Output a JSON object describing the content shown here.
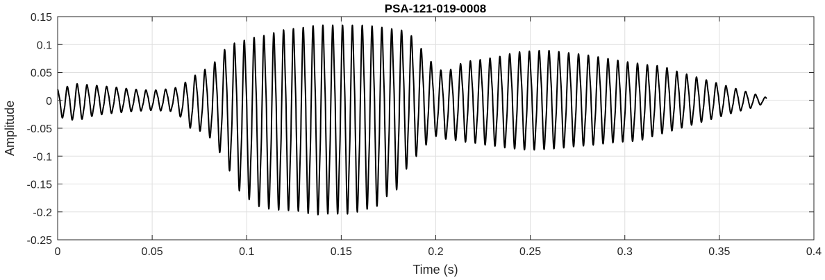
{
  "chart_data": {
    "type": "line",
    "title": "PSA-121-019-0008",
    "xlabel": "Time (s)",
    "ylabel": "Amplitude",
    "xlim": [
      0,
      0.4
    ],
    "ylim": [
      -0.25,
      0.15
    ],
    "xticks": [
      0,
      0.05,
      0.1,
      0.15,
      0.2,
      0.25,
      0.3,
      0.35,
      0.4
    ],
    "xtick_labels": [
      "0",
      "0.05",
      "0.1",
      "0.15",
      "0.2",
      "0.25",
      "0.3",
      "0.35",
      "0.4"
    ],
    "yticks": [
      -0.25,
      -0.2,
      -0.15,
      -0.1,
      -0.05,
      0,
      0.05,
      0.1,
      0.15
    ],
    "ytick_labels": [
      "-0.25",
      "-0.2",
      "-0.15",
      "-0.1",
      "-0.05",
      "0",
      "0.05",
      "0.1",
      "0.15"
    ],
    "grid": true,
    "legend": "none",
    "series": [
      {
        "line_color": "#000000",
        "envelope_top": {
          "x": [
            0,
            0.01,
            0.02,
            0.03,
            0.04,
            0.05,
            0.06,
            0.065,
            0.07,
            0.075,
            0.08,
            0.085,
            0.09,
            0.095,
            0.1,
            0.105,
            0.11,
            0.115,
            0.12,
            0.125,
            0.13,
            0.135,
            0.14,
            0.145,
            0.15,
            0.155,
            0.16,
            0.165,
            0.17,
            0.175,
            0.18,
            0.185,
            0.19,
            0.195,
            0.2,
            0.205,
            0.21,
            0.215,
            0.22,
            0.225,
            0.23,
            0.235,
            0.24,
            0.245,
            0.25,
            0.255,
            0.26,
            0.265,
            0.27,
            0.275,
            0.28,
            0.285,
            0.29,
            0.295,
            0.3,
            0.305,
            0.31,
            0.315,
            0.32,
            0.325,
            0.33,
            0.335,
            0.34,
            0.345,
            0.35,
            0.355,
            0.36,
            0.365,
            0.37,
            0.375
          ],
          "y": [
            0.02,
            0.03,
            0.027,
            0.024,
            0.02,
            0.018,
            0.021,
            0.025,
            0.04,
            0.05,
            0.06,
            0.075,
            0.1,
            0.105,
            0.11,
            0.115,
            0.118,
            0.123,
            0.128,
            0.13,
            0.132,
            0.135,
            0.136,
            0.136,
            0.136,
            0.136,
            0.136,
            0.135,
            0.133,
            0.13,
            0.128,
            0.125,
            0.105,
            0.08,
            0.06,
            0.05,
            0.06,
            0.07,
            0.072,
            0.074,
            0.077,
            0.08,
            0.085,
            0.088,
            0.089,
            0.09,
            0.09,
            0.088,
            0.086,
            0.084,
            0.082,
            0.079,
            0.076,
            0.073,
            0.07,
            0.068,
            0.065,
            0.063,
            0.062,
            0.055,
            0.05,
            0.045,
            0.04,
            0.035,
            0.03,
            0.025,
            0.02,
            0.015,
            0.01,
            0.005
          ]
        },
        "envelope_bottom": {
          "x": [
            0,
            0.01,
            0.02,
            0.03,
            0.04,
            0.05,
            0.06,
            0.065,
            0.07,
            0.075,
            0.08,
            0.085,
            0.09,
            0.095,
            0.1,
            0.105,
            0.11,
            0.115,
            0.12,
            0.125,
            0.13,
            0.135,
            0.14,
            0.145,
            0.15,
            0.155,
            0.16,
            0.165,
            0.17,
            0.175,
            0.18,
            0.185,
            0.19,
            0.195,
            0.2,
            0.205,
            0.21,
            0.215,
            0.22,
            0.225,
            0.23,
            0.235,
            0.24,
            0.245,
            0.25,
            0.255,
            0.26,
            0.265,
            0.27,
            0.275,
            0.28,
            0.285,
            0.29,
            0.295,
            0.3,
            0.305,
            0.31,
            0.315,
            0.32,
            0.325,
            0.33,
            0.335,
            0.34,
            0.345,
            0.35,
            0.355,
            0.36,
            0.365,
            0.37,
            0.375
          ],
          "y": [
            -0.03,
            -0.037,
            -0.027,
            -0.023,
            -0.02,
            -0.018,
            -0.02,
            -0.03,
            -0.05,
            -0.055,
            -0.065,
            -0.09,
            -0.12,
            -0.16,
            -0.175,
            -0.19,
            -0.195,
            -0.198,
            -0.198,
            -0.2,
            -0.2,
            -0.208,
            -0.205,
            -0.205,
            -0.205,
            -0.205,
            -0.2,
            -0.195,
            -0.19,
            -0.17,
            -0.16,
            -0.12,
            -0.1,
            -0.08,
            -0.065,
            -0.07,
            -0.072,
            -0.075,
            -0.077,
            -0.08,
            -0.082,
            -0.085,
            -0.087,
            -0.089,
            -0.09,
            -0.089,
            -0.088,
            -0.087,
            -0.085,
            -0.083,
            -0.082,
            -0.08,
            -0.078,
            -0.076,
            -0.075,
            -0.074,
            -0.071,
            -0.065,
            -0.06,
            -0.055,
            -0.05,
            -0.045,
            -0.04,
            -0.035,
            -0.03,
            -0.025,
            -0.02,
            -0.016,
            -0.01,
            -0.005
          ]
        },
        "oscillation_period_s": 0.0052
      }
    ]
  }
}
